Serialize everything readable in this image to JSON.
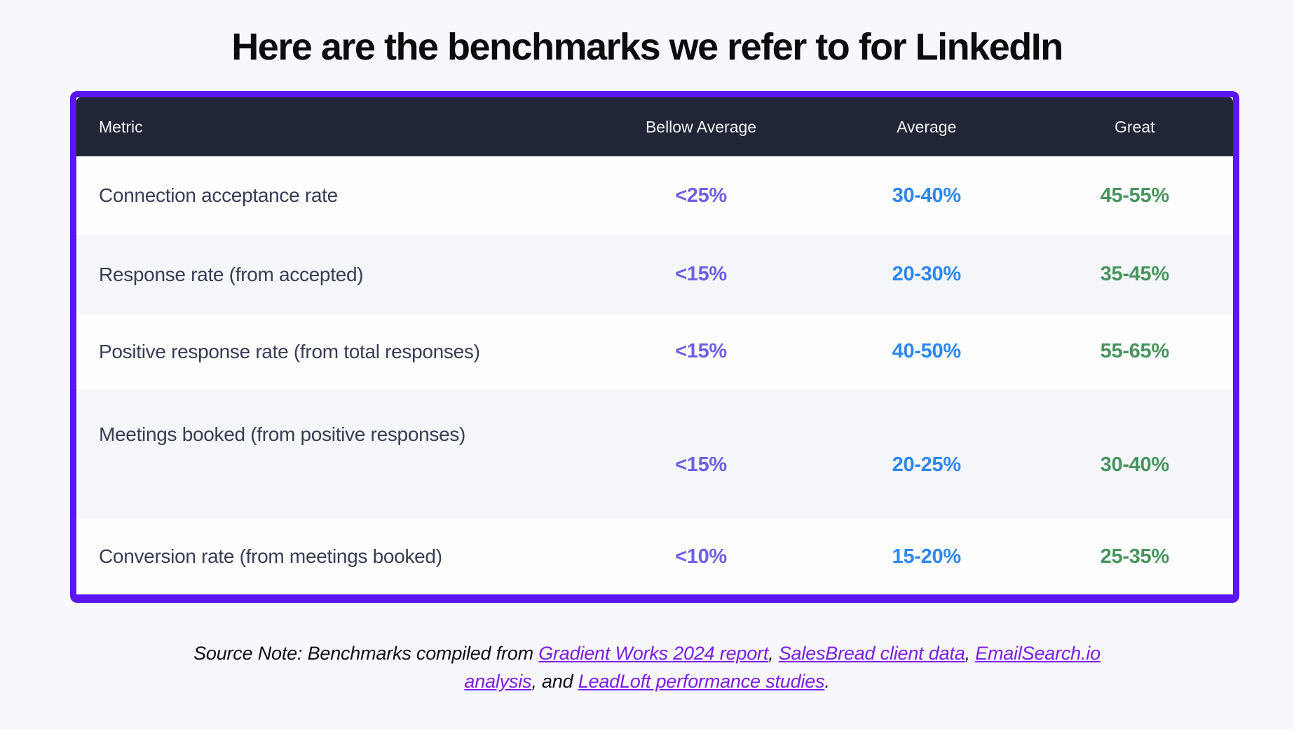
{
  "page": {
    "background_color": "#f7f7fc",
    "accent_border_color": "#5a16f0"
  },
  "title": "Here are the benchmarks we refer to for LinkedIn",
  "table": {
    "header": {
      "bg_color": "#212636",
      "columns": [
        "Metric",
        "Bellow Average",
        "Average",
        "Great"
      ]
    },
    "value_colors": {
      "bellow_average": "#6f5fe6",
      "average": "#2e87f0",
      "great": "#48945e"
    },
    "rows": [
      {
        "metric": "Connection acceptance rate",
        "bellow": "<25%",
        "average": "30-40%",
        "great": "45-55%"
      },
      {
        "metric": "Response rate (from accepted)",
        "bellow": "<15%",
        "average": "20-30%",
        "great": "35-45%"
      },
      {
        "metric": "Positive response rate (from total responses)",
        "bellow": "<15%",
        "average": "40-50%",
        "great": "55-65%"
      },
      {
        "metric": "Meetings booked (from positive responses)",
        "bellow": "<15%",
        "average": "20-25%",
        "great": "30-40%"
      },
      {
        "metric": "Conversion rate (from meetings booked)",
        "bellow": "<10%",
        "average": "15-20%",
        "great": "25-35%"
      }
    ]
  },
  "source_note": {
    "prefix": "Source Note: Benchmarks compiled from ",
    "link1": "Gradient Works 2024 report",
    "sep1": ", ",
    "link2": "SalesBread client data",
    "sep2": ", ",
    "link3": "EmailSearch.io analysis",
    "sep3": ", and ",
    "link4": "LeadLoft performance studies",
    "suffix": "."
  }
}
